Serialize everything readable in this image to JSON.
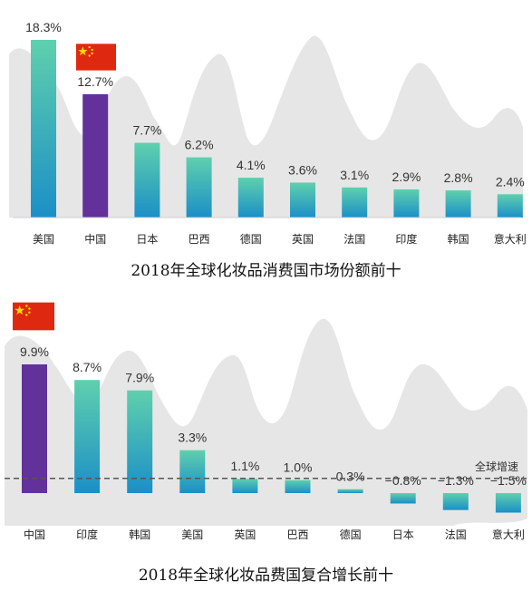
{
  "chart_data": [
    {
      "type": "bar",
      "title": "2018年全球化妆品消费国市场份额前十",
      "categories": [
        "美国",
        "中国",
        "日本",
        "巴西",
        "德国",
        "英国",
        "法国",
        "印度",
        "韩国",
        "意大利"
      ],
      "values": [
        18.3,
        12.7,
        7.7,
        6.2,
        4.1,
        3.6,
        3.1,
        2.9,
        2.8,
        2.4
      ],
      "value_labels": [
        "18.3%",
        "12.7%",
        "7.7%",
        "6.2%",
        "4.1%",
        "3.6%",
        "3.1%",
        "2.9%",
        "2.8%",
        "2.4%"
      ],
      "highlight": "中国",
      "ylim": [
        0,
        18.3
      ],
      "grid": false,
      "legend": "none"
    },
    {
      "type": "bar",
      "title": "2018年全球化妆品费国复合增长前十",
      "categories": [
        "中国",
        "印度",
        "韩国",
        "美国",
        "英国",
        "巴西",
        "德国",
        "日本",
        "法国",
        "意大利"
      ],
      "values": [
        9.9,
        8.7,
        7.9,
        3.3,
        1.1,
        1.0,
        0.3,
        -0.8,
        -1.3,
        -1.5
      ],
      "value_labels": [
        "9.9%",
        "8.7%",
        "7.9%",
        "3.3%",
        "1.1%",
        "1.0%",
        "0.3%",
        "−0.8%",
        "−1.3%",
        "−1.5%"
      ],
      "highlight": "中国",
      "reference_line": {
        "label": "全球增速",
        "value": 0.85,
        "style": "dashed"
      },
      "ylim": [
        -1.5,
        9.9
      ],
      "grid": false,
      "legend": "none"
    }
  ],
  "colors": {
    "bar_top": "#5fd0ad",
    "bar_bottom": "#1b8fc7",
    "highlight": "#62319a",
    "flag_red": "#de2910",
    "flag_star": "#ffde00",
    "reference_line": "#555555",
    "mountain": "#e4e4e4"
  },
  "icons": {
    "flag": "china-flag-icon"
  }
}
